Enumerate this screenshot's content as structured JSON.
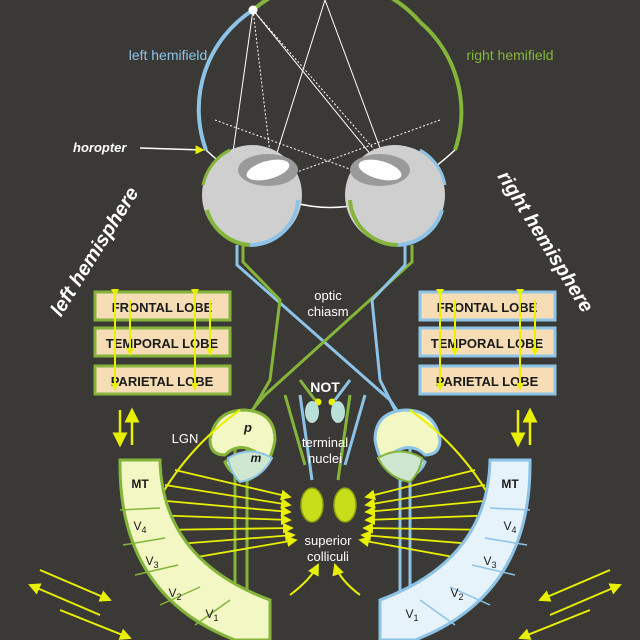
{
  "labels": {
    "left_hemifield": "left hemifield",
    "right_hemifield": "right hemifield",
    "horopter": "horopter",
    "left_hemisphere": "left hemisphere",
    "right_hemisphere": "right hemisphere",
    "optic_chiasm_1": "optic",
    "optic_chiasm_2": "chiasm",
    "not": "NOT",
    "terminal_nuclei_1": "terminal",
    "terminal_nuclei_2": "nuclei",
    "lgn": "LGN",
    "parvo": "p",
    "magno": "m",
    "superior_colliculi_1": "superior",
    "superior_colliculi_2": "colliculi",
    "mt": "MT",
    "v4": "V",
    "v3": "V",
    "v2": "V",
    "v1": "V",
    "sub4": "4",
    "sub3": "3",
    "sub2": "2",
    "sub1": "1"
  },
  "lobes": {
    "frontal": "FRONTAL LOBE",
    "temporal": "TEMPORAL LOBE",
    "parietal": "PARIETAL LOBE"
  },
  "colors": {
    "background": "#3b3936",
    "left_field": "#8cc3e6",
    "right_field": "#84b53a",
    "yellow": "#e8f000",
    "lobe_fill": "#f7ddb5",
    "pale_yellow": "#f3f7c4",
    "pale_blue": "#e6f3fb",
    "eye_gray": "#cfcfcf"
  }
}
